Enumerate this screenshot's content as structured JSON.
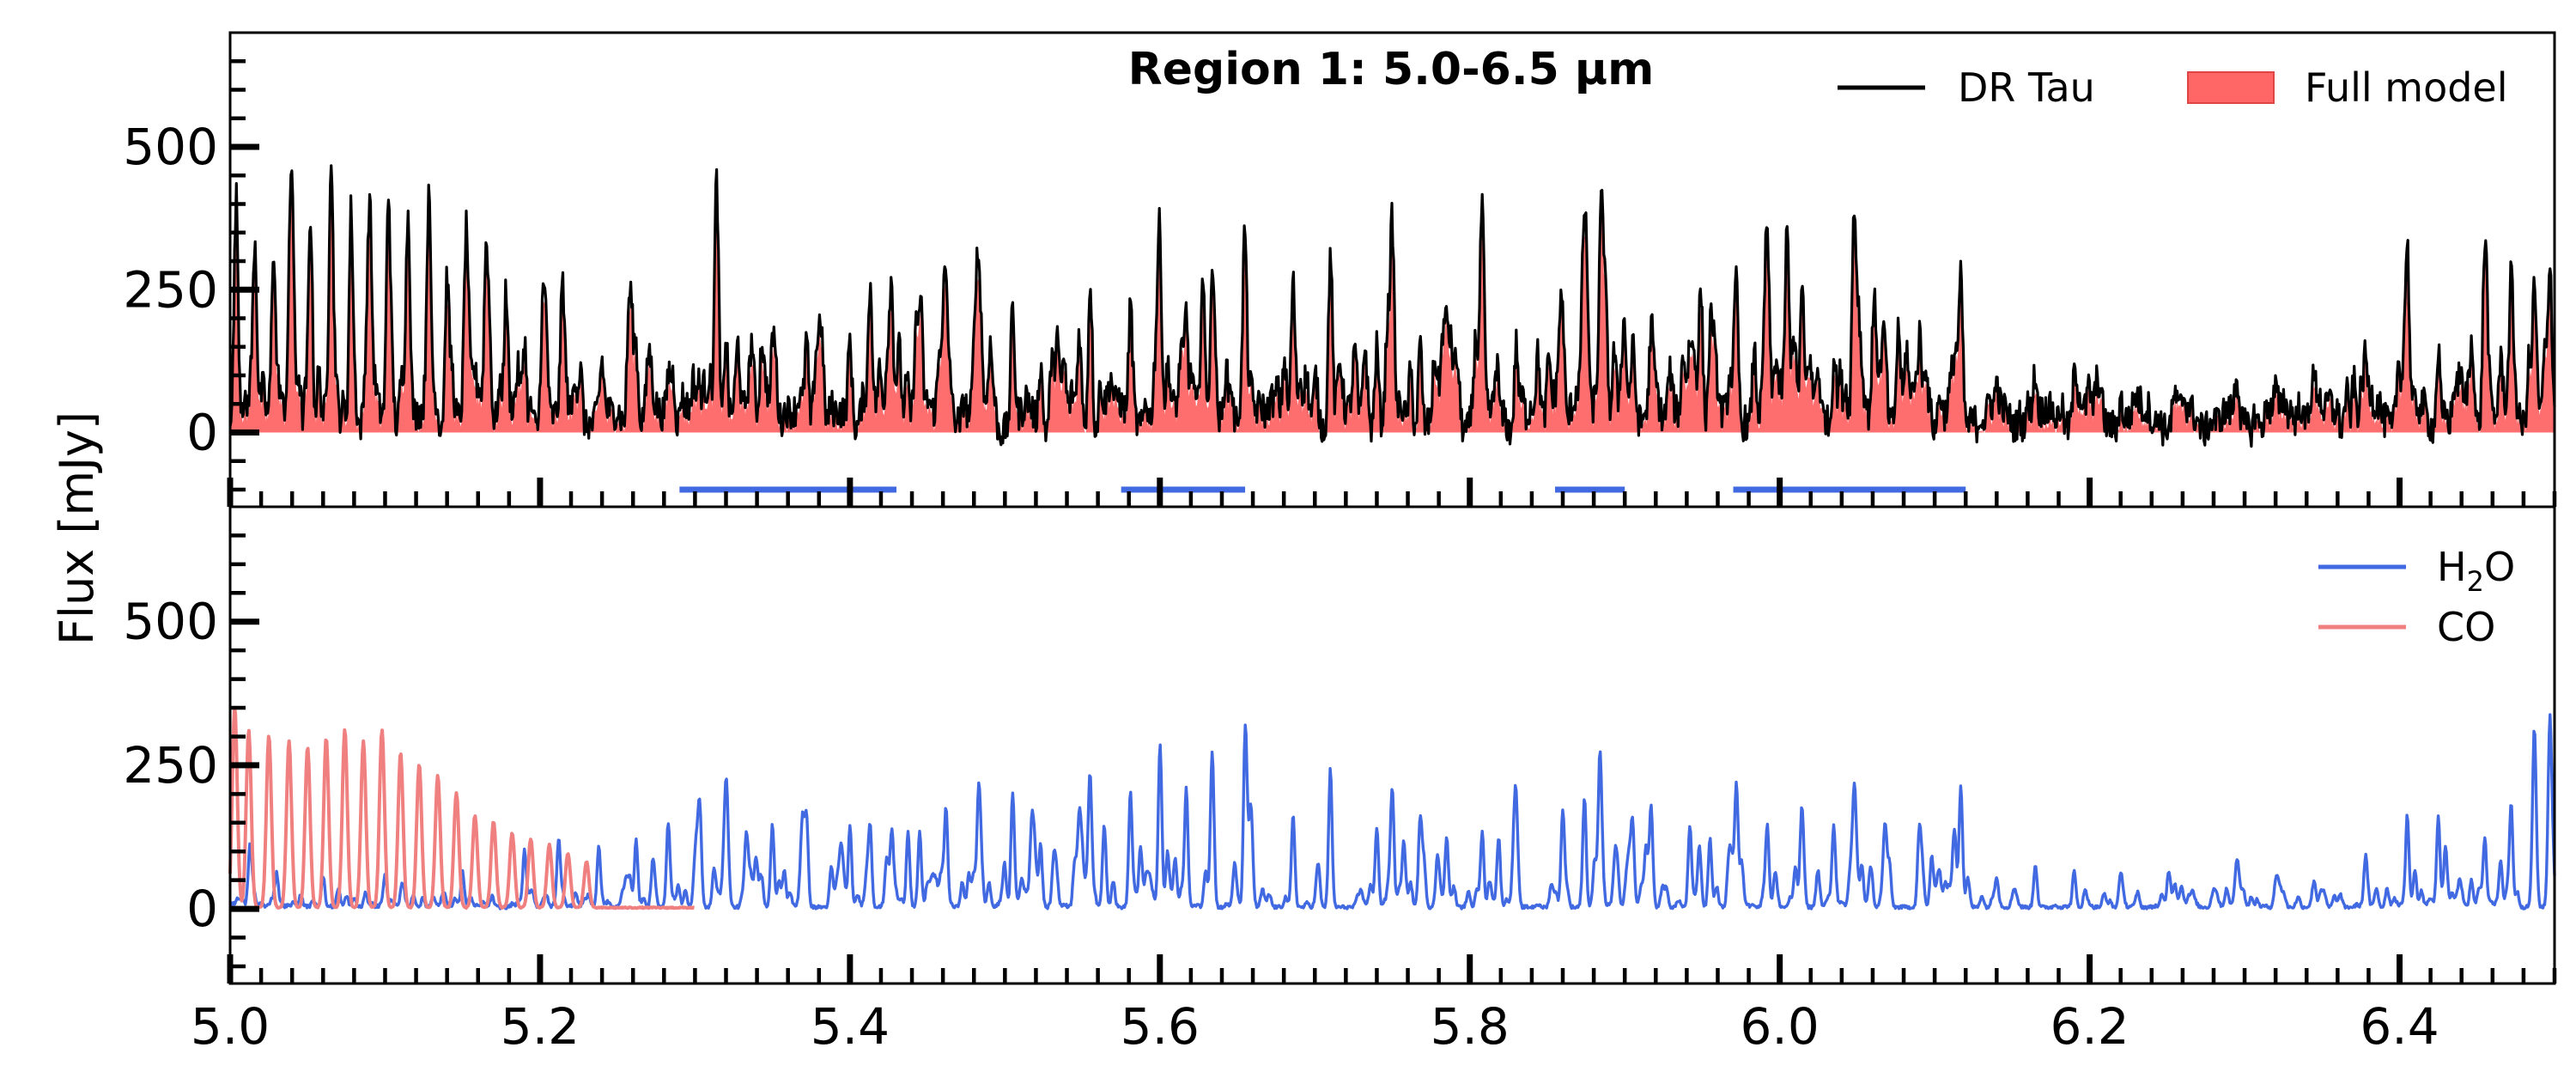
{
  "chart_data": [
    {
      "type": "line",
      "panel": "top",
      "title": "Region 1: 5.0-6.5 μm",
      "ylabel": "Flux [mJy]",
      "xlim": [
        5.0,
        6.5
      ],
      "ylim": [
        -130,
        700
      ],
      "y_ticks": [
        0,
        250,
        500
      ],
      "legend_position": "top-right",
      "grid": false,
      "series": [
        {
          "name": "DR Tau",
          "kind": "line",
          "color": "#000000",
          "description": "dense emission-line spectrum; peaks up to ~380 mJy near 5.08 μm, most lines 50-250 mJy"
        },
        {
          "name": "Full model",
          "kind": "filled-area",
          "color": "#ff6666",
          "description": "model shaded from 0 up to model flux, tracking the observed lines"
        }
      ],
      "annotations": {
        "type": "horizontal-segments",
        "y": -100,
        "color": "#4169e1",
        "segments": [
          [
            5.29,
            5.43
          ],
          [
            5.575,
            5.655
          ],
          [
            5.855,
            5.9
          ],
          [
            5.97,
            6.12
          ]
        ]
      }
    },
    {
      "type": "line",
      "panel": "bottom",
      "xlabel": "",
      "xlim": [
        5.0,
        6.5
      ],
      "ylim": [
        -130,
        700
      ],
      "x_ticks": [
        5.0,
        5.2,
        5.4,
        5.6,
        5.8,
        6.0,
        6.2,
        6.4
      ],
      "y_ticks": [
        0,
        250,
        500
      ],
      "legend_position": "top-right",
      "grid": false,
      "series": [
        {
          "name": "H₂O",
          "legend_main": "H",
          "legend_sub": "2",
          "legend_tail": "O",
          "color": "#4169e1",
          "description": "water emission lines across the full range, peaks up to ~280 mJy at 6.5 μm"
        },
        {
          "name": "CO",
          "color": "#f08080",
          "description": "CO ro-vibrational ladder 5.0-5.3 μm; strong ~310 mJy peaks at 5.0-5.1 μm fading toward 5.25 μm, flat after"
        }
      ],
      "co_peaks": [
        {
          "x": 5.003,
          "y": 350
        },
        {
          "x": 5.012,
          "y": 310
        },
        {
          "x": 5.025,
          "y": 300
        },
        {
          "x": 5.038,
          "y": 290
        },
        {
          "x": 5.05,
          "y": 280
        },
        {
          "x": 5.062,
          "y": 295
        },
        {
          "x": 5.074,
          "y": 310
        },
        {
          "x": 5.086,
          "y": 290
        },
        {
          "x": 5.098,
          "y": 310
        },
        {
          "x": 5.11,
          "y": 270
        },
        {
          "x": 5.122,
          "y": 250
        },
        {
          "x": 5.134,
          "y": 230
        },
        {
          "x": 5.146,
          "y": 200
        },
        {
          "x": 5.158,
          "y": 160
        },
        {
          "x": 5.17,
          "y": 150
        },
        {
          "x": 5.182,
          "y": 130
        },
        {
          "x": 5.194,
          "y": 120
        },
        {
          "x": 5.206,
          "y": 110
        },
        {
          "x": 5.218,
          "y": 95
        },
        {
          "x": 5.23,
          "y": 80
        }
      ],
      "key_peaks": {
        "dr_tau": [
          {
            "x": 5.004,
            "y": 350
          },
          {
            "x": 5.016,
            "y": 320
          },
          {
            "x": 5.028,
            "y": 300
          },
          {
            "x": 5.04,
            "y": 290
          },
          {
            "x": 5.052,
            "y": 280
          },
          {
            "x": 5.065,
            "y": 310
          },
          {
            "x": 5.078,
            "y": 380
          },
          {
            "x": 5.09,
            "y": 340
          },
          {
            "x": 5.102,
            "y": 320
          },
          {
            "x": 5.115,
            "y": 300
          },
          {
            "x": 5.128,
            "y": 280
          },
          {
            "x": 5.14,
            "y": 270
          },
          {
            "x": 5.152,
            "y": 230
          },
          {
            "x": 5.165,
            "y": 200
          },
          {
            "x": 5.178,
            "y": 170
          },
          {
            "x": 5.19,
            "y": 140
          },
          {
            "x": 5.202,
            "y": 120
          },
          {
            "x": 5.215,
            "y": 110
          },
          {
            "x": 5.226,
            "y": 100
          },
          {
            "x": 5.24,
            "y": 90
          },
          {
            "x": 5.262,
            "y": 130
          },
          {
            "x": 5.283,
            "y": 90
          },
          {
            "x": 5.32,
            "y": 170
          },
          {
            "x": 5.35,
            "y": 140
          },
          {
            "x": 5.372,
            "y": 150
          },
          {
            "x": 5.4,
            "y": 140
          },
          {
            "x": 5.413,
            "y": 140
          },
          {
            "x": 5.427,
            "y": 130
          },
          {
            "x": 5.445,
            "y": 130
          },
          {
            "x": 5.462,
            "y": 170
          },
          {
            "x": 5.483,
            "y": 190
          },
          {
            "x": 5.505,
            "y": 200
          },
          {
            "x": 5.523,
            "y": 110
          },
          {
            "x": 5.548,
            "y": 150
          },
          {
            "x": 5.555,
            "y": 235
          },
          {
            "x": 5.581,
            "y": 200
          },
          {
            "x": 5.6,
            "y": 260
          },
          {
            "x": 5.617,
            "y": 180
          },
          {
            "x": 5.634,
            "y": 200
          },
          {
            "x": 5.655,
            "y": 260
          },
          {
            "x": 5.686,
            "y": 160
          },
          {
            "x": 5.71,
            "y": 250
          },
          {
            "x": 5.74,
            "y": 140
          },
          {
            "x": 5.75,
            "y": 200
          },
          {
            "x": 5.768,
            "y": 150
          },
          {
            "x": 5.785,
            "y": 120
          },
          {
            "x": 5.808,
            "y": 130
          },
          {
            "x": 5.83,
            "y": 140
          },
          {
            "x": 5.86,
            "y": 170
          },
          {
            "x": 5.874,
            "y": 190
          },
          {
            "x": 5.884,
            "y": 200
          },
          {
            "x": 5.905,
            "y": 100
          },
          {
            "x": 5.917,
            "y": 170
          },
          {
            "x": 5.942,
            "y": 140
          },
          {
            "x": 5.955,
            "y": 120
          },
          {
            "x": 5.972,
            "y": 210
          },
          {
            "x": 5.992,
            "y": 140
          },
          {
            "x": 6.014,
            "y": 120
          },
          {
            "x": 6.035,
            "y": 120
          },
          {
            "x": 6.048,
            "y": 180
          },
          {
            "x": 6.068,
            "y": 140
          },
          {
            "x": 6.09,
            "y": 120
          },
          {
            "x": 6.117,
            "y": 140
          },
          {
            "x": 6.14,
            "y": 50
          },
          {
            "x": 6.165,
            "y": 60
          },
          {
            "x": 6.19,
            "y": 60
          },
          {
            "x": 6.22,
            "y": 50
          },
          {
            "x": 6.255,
            "y": 40
          },
          {
            "x": 6.295,
            "y": 70
          },
          {
            "x": 6.32,
            "y": 40
          },
          {
            "x": 6.345,
            "y": 40
          },
          {
            "x": 6.378,
            "y": 60
          },
          {
            "x": 6.405,
            "y": 160
          },
          {
            "x": 6.425,
            "y": 140
          },
          {
            "x": 6.455,
            "y": 120
          },
          {
            "x": 6.472,
            "y": 180
          },
          {
            "x": 6.487,
            "y": 260
          },
          {
            "x": 6.497,
            "y": 270
          }
        ],
        "h2o": [
          {
            "x": 5.013,
            "y": 80
          },
          {
            "x": 5.03,
            "y": 60
          },
          {
            "x": 5.06,
            "y": 50
          },
          {
            "x": 5.1,
            "y": 55
          },
          {
            "x": 5.15,
            "y": 60
          },
          {
            "x": 5.19,
            "y": 100
          },
          {
            "x": 5.212,
            "y": 120
          },
          {
            "x": 5.238,
            "y": 90
          },
          {
            "x": 5.262,
            "y": 100
          },
          {
            "x": 5.283,
            "y": 80
          },
          {
            "x": 5.32,
            "y": 170
          },
          {
            "x": 5.35,
            "y": 140
          },
          {
            "x": 5.372,
            "y": 150
          },
          {
            "x": 5.4,
            "y": 140
          },
          {
            "x": 5.413,
            "y": 140
          },
          {
            "x": 5.427,
            "y": 130
          },
          {
            "x": 5.445,
            "y": 130
          },
          {
            "x": 5.462,
            "y": 170
          },
          {
            "x": 5.483,
            "y": 190
          },
          {
            "x": 5.505,
            "y": 200
          },
          {
            "x": 5.523,
            "y": 110
          },
          {
            "x": 5.548,
            "y": 150
          },
          {
            "x": 5.555,
            "y": 210
          },
          {
            "x": 5.581,
            "y": 200
          },
          {
            "x": 5.6,
            "y": 250
          },
          {
            "x": 5.617,
            "y": 180
          },
          {
            "x": 5.634,
            "y": 200
          },
          {
            "x": 5.655,
            "y": 260
          },
          {
            "x": 5.686,
            "y": 160
          },
          {
            "x": 5.71,
            "y": 240
          },
          {
            "x": 5.74,
            "y": 140
          },
          {
            "x": 5.75,
            "y": 200
          },
          {
            "x": 5.768,
            "y": 150
          },
          {
            "x": 5.785,
            "y": 120
          },
          {
            "x": 5.808,
            "y": 130
          },
          {
            "x": 5.83,
            "y": 140
          },
          {
            "x": 5.86,
            "y": 170
          },
          {
            "x": 5.874,
            "y": 190
          },
          {
            "x": 5.884,
            "y": 245
          },
          {
            "x": 5.905,
            "y": 100
          },
          {
            "x": 5.917,
            "y": 170
          },
          {
            "x": 5.942,
            "y": 140
          },
          {
            "x": 5.955,
            "y": 120
          },
          {
            "x": 5.972,
            "y": 210
          },
          {
            "x": 5.992,
            "y": 140
          },
          {
            "x": 6.014,
            "y": 120
          },
          {
            "x": 6.035,
            "y": 120
          },
          {
            "x": 6.048,
            "y": 160
          },
          {
            "x": 6.068,
            "y": 140
          },
          {
            "x": 6.09,
            "y": 120
          },
          {
            "x": 6.117,
            "y": 140
          },
          {
            "x": 6.14,
            "y": 50
          },
          {
            "x": 6.165,
            "y": 60
          },
          {
            "x": 6.19,
            "y": 60
          },
          {
            "x": 6.22,
            "y": 50
          },
          {
            "x": 6.255,
            "y": 40
          },
          {
            "x": 6.295,
            "y": 70
          },
          {
            "x": 6.32,
            "y": 40
          },
          {
            "x": 6.345,
            "y": 40
          },
          {
            "x": 6.378,
            "y": 60
          },
          {
            "x": 6.405,
            "y": 160
          },
          {
            "x": 6.425,
            "y": 140
          },
          {
            "x": 6.455,
            "y": 120
          },
          {
            "x": 6.472,
            "y": 180
          },
          {
            "x": 6.487,
            "y": 260
          },
          {
            "x": 6.497,
            "y": 280
          }
        ]
      }
    }
  ]
}
